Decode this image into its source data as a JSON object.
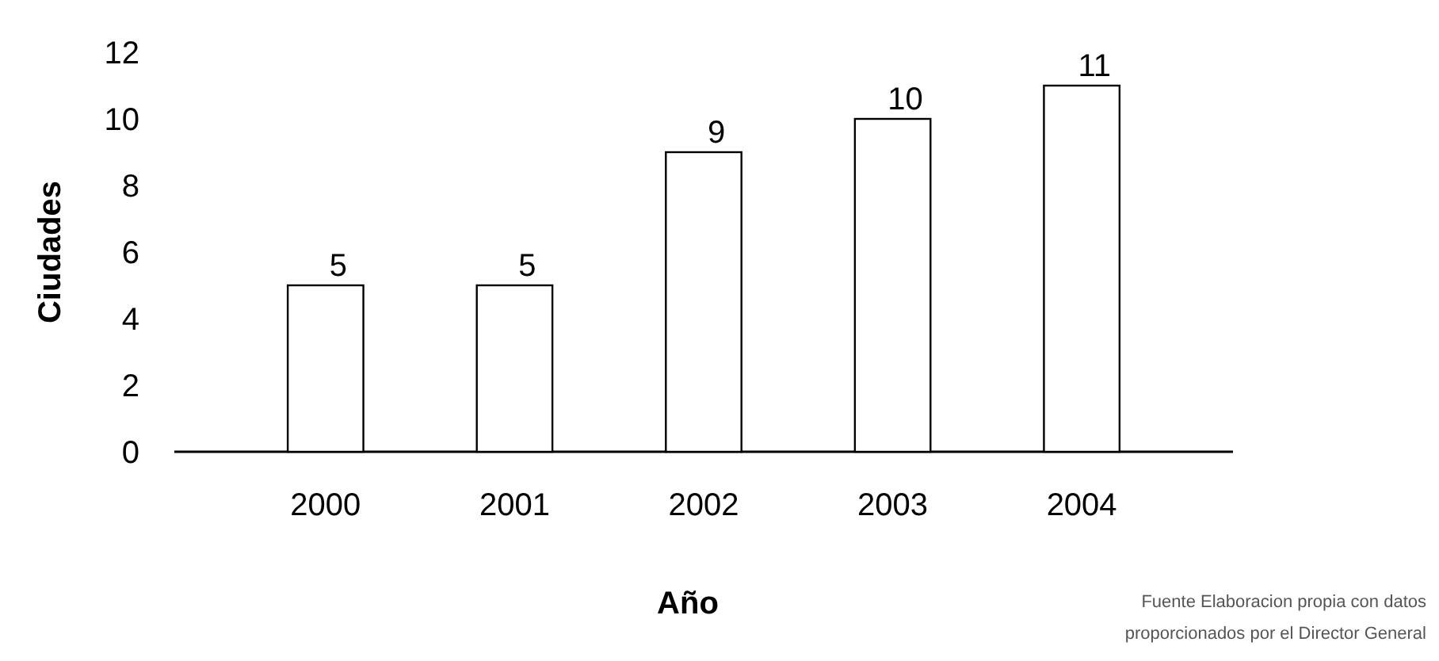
{
  "chart_data": {
    "type": "bar",
    "categories": [
      "2000",
      "2001",
      "2002",
      "2003",
      "2004"
    ],
    "values": [
      5,
      5,
      9,
      10,
      11
    ],
    "color": "#ffffff",
    "data_labels": true,
    "ylim": [
      0,
      12
    ],
    "yticks": [
      0,
      2,
      4,
      6,
      8,
      10,
      12
    ],
    "ylabel": "Ciudades",
    "xlabel": "Año",
    "grid": false,
    "annotations": [
      "Fuente  Elaboracion propia con datos proporcionados por el Director General"
    ]
  }
}
